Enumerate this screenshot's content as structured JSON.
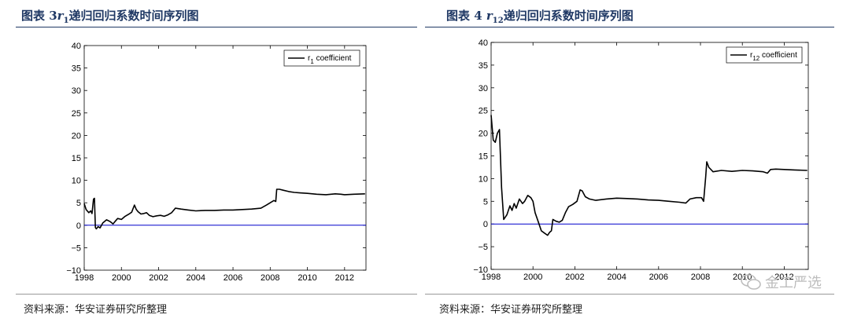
{
  "figures": [
    {
      "title_prefix": "图表 3",
      "title_symbol": "r",
      "title_sub": "1",
      "title_suffix": "递归回归系数时间序列图",
      "source": "资料来源：华安证券研究所整理"
    },
    {
      "title_prefix": "图表 4 ",
      "title_symbol": "r",
      "title_sub": "12",
      "title_suffix": "递归回归系数时间序列图",
      "source": "资料来源：华安证券研究所整理"
    }
  ],
  "watermark": {
    "text": "金工严选",
    "icon": "wechat-icon"
  },
  "chart_data": [
    {
      "type": "line",
      "legend": [
        {
          "prefix": "r",
          "sub": "1",
          "suffix": " coefficient"
        }
      ],
      "legend_position": "top-right",
      "xlim": [
        1998,
        2013.15
      ],
      "ylim": [
        -10,
        40
      ],
      "xticks": [
        1998,
        2000,
        2002,
        2004,
        2006,
        2008,
        2010,
        2012
      ],
      "yticks": [
        -10,
        -5,
        0,
        5,
        10,
        15,
        20,
        25,
        30,
        35,
        40
      ],
      "ytick_labels": [
        "−10",
        "−5",
        "0",
        "5",
        "10",
        "15",
        "20",
        "25",
        "30",
        "35",
        "40"
      ],
      "reference_line": {
        "y": 0,
        "color": "#0000cc"
      },
      "series": [
        {
          "color": "#000000",
          "points": [
            [
              1998.0,
              4.8
            ],
            [
              1998.1,
              3.5
            ],
            [
              1998.25,
              2.8
            ],
            [
              1998.35,
              3.2
            ],
            [
              1998.42,
              2.6
            ],
            [
              1998.5,
              5.8
            ],
            [
              1998.55,
              6.0
            ],
            [
              1998.6,
              -0.5
            ],
            [
              1998.65,
              -0.8
            ],
            [
              1998.75,
              -0.3
            ],
            [
              1998.85,
              -0.6
            ],
            [
              1999.0,
              0.5
            ],
            [
              1999.2,
              1.2
            ],
            [
              1999.4,
              0.8
            ],
            [
              1999.55,
              0.3
            ],
            [
              1999.65,
              0.8
            ],
            [
              1999.8,
              1.5
            ],
            [
              2000.0,
              1.3
            ],
            [
              2000.2,
              2.0
            ],
            [
              2000.45,
              2.6
            ],
            [
              2000.55,
              2.9
            ],
            [
              2000.7,
              4.5
            ],
            [
              2000.8,
              3.5
            ],
            [
              2000.9,
              3.0
            ],
            [
              2001.05,
              2.5
            ],
            [
              2001.2,
              2.6
            ],
            [
              2001.35,
              2.8
            ],
            [
              2001.5,
              2.2
            ],
            [
              2001.7,
              1.9
            ],
            [
              2001.9,
              2.1
            ],
            [
              2002.1,
              2.2
            ],
            [
              2002.3,
              2.0
            ],
            [
              2002.5,
              2.3
            ],
            [
              2002.7,
              2.8
            ],
            [
              2002.9,
              3.8
            ],
            [
              2003.2,
              3.6
            ],
            [
              2003.6,
              3.4
            ],
            [
              2004.0,
              3.2
            ],
            [
              2004.5,
              3.3
            ],
            [
              2005.0,
              3.3
            ],
            [
              2005.5,
              3.4
            ],
            [
              2006.0,
              3.4
            ],
            [
              2006.5,
              3.5
            ],
            [
              2007.0,
              3.6
            ],
            [
              2007.5,
              3.8
            ],
            [
              2007.8,
              4.5
            ],
            [
              2008.0,
              5.0
            ],
            [
              2008.2,
              5.5
            ],
            [
              2008.3,
              5.3
            ],
            [
              2008.35,
              8.0
            ],
            [
              2008.5,
              8.0
            ],
            [
              2008.7,
              7.8
            ],
            [
              2009.0,
              7.5
            ],
            [
              2009.3,
              7.3
            ],
            [
              2009.6,
              7.2
            ],
            [
              2010.0,
              7.1
            ],
            [
              2010.5,
              6.9
            ],
            [
              2011.0,
              6.8
            ],
            [
              2011.5,
              7.0
            ],
            [
              2011.8,
              6.9
            ],
            [
              2012.0,
              6.8
            ],
            [
              2012.5,
              6.9
            ],
            [
              2013.1,
              7.0
            ]
          ]
        }
      ]
    },
    {
      "type": "line",
      "legend": [
        {
          "prefix": "r",
          "sub": "12",
          "suffix": " coefficient"
        }
      ],
      "legend_position": "top-right",
      "xlim": [
        1998,
        2013.15
      ],
      "ylim": [
        -10,
        40
      ],
      "xticks": [
        1998,
        2000,
        2002,
        2004,
        2006,
        2008,
        2010,
        2012
      ],
      "yticks": [
        -10,
        -5,
        0,
        5,
        10,
        15,
        20,
        25,
        30,
        35,
        40
      ],
      "ytick_labels": [
        "−10",
        "−5",
        "0",
        "5",
        "10",
        "15",
        "20",
        "25",
        "30",
        "35",
        "40"
      ],
      "reference_line": {
        "y": 0,
        "color": "#0000cc"
      },
      "series": [
        {
          "color": "#000000",
          "points": [
            [
              1998.0,
              24.0
            ],
            [
              1998.1,
              18.5
            ],
            [
              1998.2,
              18.0
            ],
            [
              1998.3,
              20.0
            ],
            [
              1998.4,
              20.8
            ],
            [
              1998.5,
              8.0
            ],
            [
              1998.6,
              1.0
            ],
            [
              1998.75,
              2.0
            ],
            [
              1998.9,
              4.0
            ],
            [
              1999.0,
              3.0
            ],
            [
              1999.1,
              4.5
            ],
            [
              1999.2,
              3.5
            ],
            [
              1999.35,
              5.5
            ],
            [
              1999.5,
              4.5
            ],
            [
              1999.6,
              5.0
            ],
            [
              1999.75,
              6.3
            ],
            [
              1999.9,
              5.8
            ],
            [
              2000.0,
              5.0
            ],
            [
              2000.1,
              2.5
            ],
            [
              2000.25,
              0.5
            ],
            [
              2000.4,
              -1.5
            ],
            [
              2000.55,
              -2.0
            ],
            [
              2000.7,
              -2.5
            ],
            [
              2000.8,
              -1.8
            ],
            [
              2000.88,
              -1.5
            ],
            [
              2000.95,
              1.0
            ],
            [
              2001.1,
              0.6
            ],
            [
              2001.25,
              0.4
            ],
            [
              2001.4,
              0.8
            ],
            [
              2001.55,
              2.5
            ],
            [
              2001.7,
              3.8
            ],
            [
              2001.9,
              4.3
            ],
            [
              2002.1,
              5.0
            ],
            [
              2002.25,
              7.5
            ],
            [
              2002.35,
              7.3
            ],
            [
              2002.5,
              6.0
            ],
            [
              2002.7,
              5.5
            ],
            [
              2003.0,
              5.2
            ],
            [
              2003.5,
              5.5
            ],
            [
              2004.0,
              5.7
            ],
            [
              2004.5,
              5.6
            ],
            [
              2005.0,
              5.5
            ],
            [
              2005.5,
              5.3
            ],
            [
              2006.0,
              5.2
            ],
            [
              2006.5,
              5.0
            ],
            [
              2007.0,
              4.8
            ],
            [
              2007.3,
              4.6
            ],
            [
              2007.5,
              5.5
            ],
            [
              2007.8,
              5.8
            ],
            [
              2008.05,
              5.8
            ],
            [
              2008.15,
              5.0
            ],
            [
              2008.25,
              10.5
            ],
            [
              2008.3,
              13.7
            ],
            [
              2008.4,
              12.5
            ],
            [
              2008.6,
              11.5
            ],
            [
              2009.0,
              11.8
            ],
            [
              2009.5,
              11.6
            ],
            [
              2010.0,
              11.8
            ],
            [
              2010.5,
              11.7
            ],
            [
              2011.0,
              11.5
            ],
            [
              2011.2,
              11.2
            ],
            [
              2011.35,
              12.0
            ],
            [
              2011.6,
              12.1
            ],
            [
              2012.0,
              12.0
            ],
            [
              2012.5,
              11.9
            ],
            [
              2013.1,
              11.8
            ]
          ]
        }
      ]
    }
  ]
}
